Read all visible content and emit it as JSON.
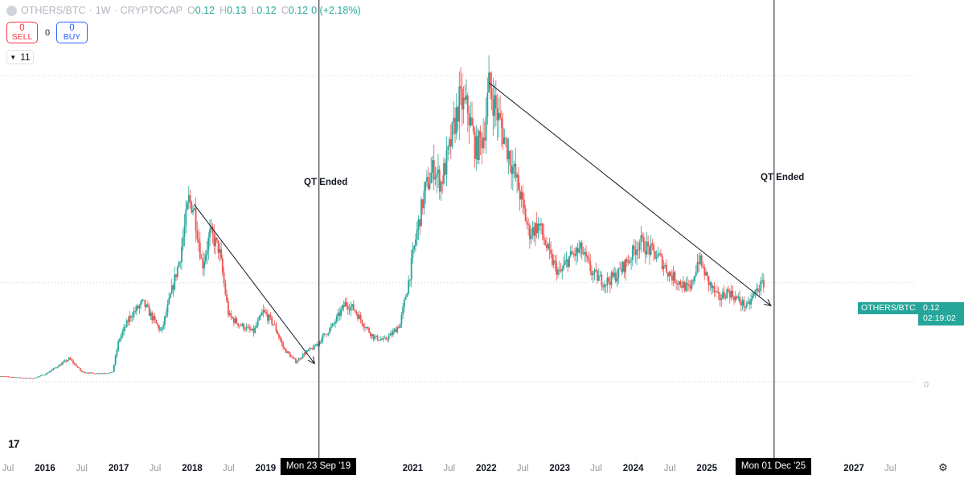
{
  "header": {
    "symbol": "OTHERS/BTC",
    "interval": "1W",
    "exchange": "CRYPTOCAP",
    "o_label": "O",
    "o_value": "0.12",
    "h_label": "H",
    "h_value": "0.13",
    "l_label": "L",
    "l_value": "0.12",
    "c_label": "C",
    "c_value": "0.12",
    "change": "0 (+2.18%)"
  },
  "trade": {
    "sell_value": "0",
    "sell_label": "SELL",
    "spread": "0",
    "buy_value": "0",
    "buy_label": "BUY"
  },
  "indicators": {
    "count": "11"
  },
  "price_scale": {
    "symbol_label": "OTHERS/BTC",
    "last_price": "0.12",
    "countdown": "02:19:02",
    "zero_label": "0"
  },
  "chart_data": {
    "type": "line",
    "title": "",
    "x_axis_type": "date",
    "x_tick_labels": [
      "Jul",
      "2016",
      "Jul",
      "2017",
      "Jul",
      "2018",
      "Jul",
      "2019",
      "Jul",
      "2021",
      "Jul",
      "2022",
      "Jul",
      "2023",
      "Jul",
      "2024",
      "Jul",
      "2025",
      "Jul",
      "2027",
      "Jul"
    ],
    "y_tick_labels": [
      "0"
    ],
    "ylim": [
      -0.02,
      0.4
    ],
    "grid": false,
    "series": [
      {
        "values_note": "",
        "x": [
          "2015-05-01",
          "2015-11-01",
          "2016-01-01",
          "2016-05-01",
          "2016-07-01",
          "2016-09-01",
          "2016-12-01",
          "2017-01-01",
          "2017-03-01",
          "2017-05-01",
          "2017-06-01",
          "2017-08-01",
          "2017-09-01",
          "2017-11-01",
          "2017-12-15",
          "2018-01-10",
          "2018-02-20",
          "2018-04-01",
          "2018-05-15",
          "2018-07-01",
          "2018-08-20",
          "2018-11-01",
          "2018-12-20",
          "2019-02-10",
          "2019-04-01",
          "2019-06-01",
          "2019-07-15",
          "2019-09-01",
          "2019-10-15",
          "2019-12-01",
          "2020-02-01",
          "2020-03-15",
          "2020-05-01",
          "2020-06-20",
          "2020-08-10",
          "2020-09-20",
          "2020-10-30",
          "2020-12-10",
          "2021-01-20",
          "2021-03-01",
          "2021-04-15",
          "2021-05-20",
          "2021-07-01",
          "2021-08-20",
          "2021-10-01",
          "2021-11-10",
          "2021-12-20",
          "2022-01-15",
          "2022-03-01",
          "2022-05-01",
          "2022-06-15",
          "2022-08-01",
          "2022-09-20",
          "2022-11-15",
          "2023-01-01",
          "2023-02-15",
          "2023-04-15",
          "2023-06-15",
          "2023-08-15",
          "2023-10-15",
          "2023-12-15",
          "2024-02-01",
          "2024-03-20",
          "2024-05-10",
          "2024-07-01",
          "2024-08-20",
          "2024-10-10",
          "2024-11-20",
          "2025-01-10",
          "2025-03-01",
          "2025-04-15",
          "2025-06-01",
          "2025-07-20",
          "2025-09-01",
          "2025-10-10"
        ],
        "y": [
          0.007,
          0.004,
          0.009,
          0.028,
          0.012,
          0.01,
          0.011,
          0.05,
          0.08,
          0.096,
          0.084,
          0.06,
          0.09,
          0.15,
          0.22,
          0.21,
          0.14,
          0.18,
          0.16,
          0.08,
          0.07,
          0.06,
          0.085,
          0.07,
          0.04,
          0.024,
          0.035,
          0.042,
          0.055,
          0.068,
          0.095,
          0.088,
          0.07,
          0.054,
          0.05,
          0.058,
          0.07,
          0.12,
          0.18,
          0.23,
          0.26,
          0.24,
          0.28,
          0.34,
          0.33,
          0.28,
          0.3,
          0.36,
          0.32,
          0.27,
          0.23,
          0.18,
          0.19,
          0.15,
          0.13,
          0.15,
          0.16,
          0.13,
          0.12,
          0.13,
          0.15,
          0.17,
          0.16,
          0.15,
          0.13,
          0.12,
          0.11,
          0.15,
          0.12,
          0.1,
          0.11,
          0.1,
          0.09,
          0.11,
          0.12
        ]
      }
    ],
    "last_price": 0.12,
    "annotations": [
      {
        "type": "vertical_line",
        "date": "2019-09-23",
        "label": "QT Ended",
        "date_label": "Mon 23 Sep '19"
      },
      {
        "type": "vertical_line",
        "date": "2025-12-01",
        "label": "QT Ended",
        "date_label": "Mon 01 Dec '25"
      },
      {
        "type": "trend_arrow",
        "from": {
          "x": "2018-01-10",
          "y": 0.215
        },
        "to": {
          "x": "2019-09-01",
          "y": 0.022
        }
      },
      {
        "type": "trend_arrow",
        "from": {
          "x": "2022-01-15",
          "y": 0.362
        },
        "to": {
          "x": "2025-11-15",
          "y": 0.092
        }
      }
    ],
    "colors": {
      "up": "#26a69a",
      "down": "#ef5350",
      "line": "#131722",
      "label_bg": "#000000"
    }
  }
}
